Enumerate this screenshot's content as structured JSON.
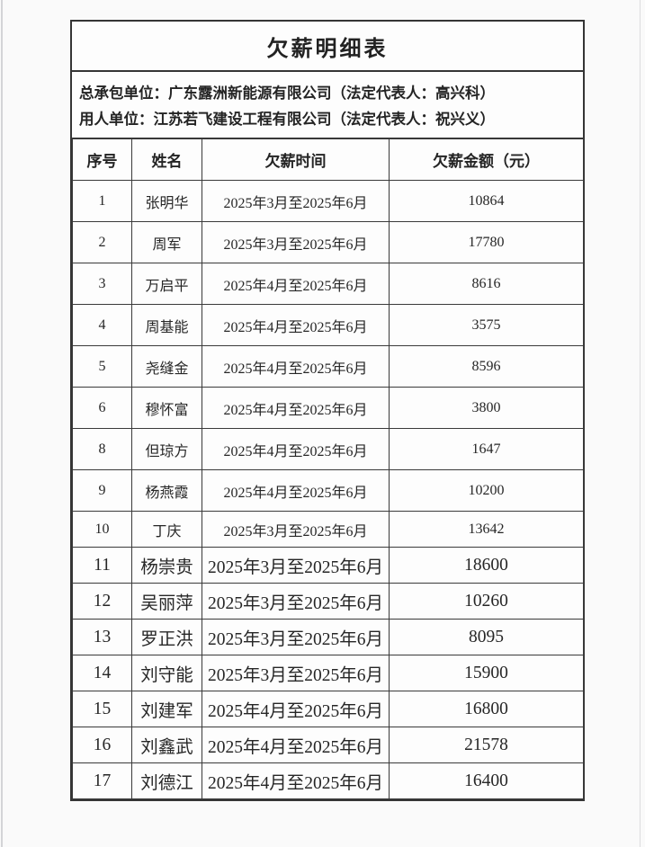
{
  "page": {
    "title": "欠薪明细表",
    "info_lines": [
      "总承包单位：广东露洲新能源有限公司（法定代表人：高兴科）",
      "用人单位：江苏若飞建设工程有限公司（法定代表人：祝兴义）"
    ]
  },
  "table": {
    "headers": [
      "序号",
      "姓名",
      "欠薪时间",
      "欠薪金额（元）"
    ],
    "rows": [
      [
        "1",
        "张明华",
        "2025年3月至2025年6月",
        "10864"
      ],
      [
        "2",
        "周军",
        "2025年3月至2025年6月",
        "17780"
      ],
      [
        "3",
        "万启平",
        "2025年4月至2025年6月",
        "8616"
      ],
      [
        "4",
        "周基能",
        "2025年4月至2025年6月",
        "3575"
      ],
      [
        "5",
        "尧缝金",
        "2025年4月至2025年6月",
        "8596"
      ],
      [
        "6",
        "穆怀富",
        "2025年4月至2025年6月",
        "3800"
      ],
      [
        "8",
        "但琼方",
        "2025年4月至2025年6月",
        "1647"
      ],
      [
        "9",
        "杨燕霞",
        "2025年4月至2025年6月",
        "10200"
      ],
      [
        "10",
        "丁庆",
        "2025年3月至2025年6月",
        "13642"
      ],
      [
        "11",
        "杨崇贵",
        "2025年3月至2025年6月",
        "18600"
      ],
      [
        "12",
        "吴丽萍",
        "2025年3月至2025年6月",
        "10260"
      ],
      [
        "13",
        "罗正洪",
        "2025年3月至2025年6月",
        "8095"
      ],
      [
        "14",
        "刘守能",
        "2025年3月至2025年6月",
        "15900"
      ],
      [
        "15",
        "刘建军",
        "2025年4月至2025年6月",
        "16800"
      ],
      [
        "16",
        "刘鑫武",
        "2025年4月至2025年6月",
        "21578"
      ],
      [
        "17",
        "刘德江",
        "2025年4月至2025年6月",
        "16400"
      ]
    ]
  },
  "colors": {
    "border": "#353535",
    "text": "#262626",
    "page_background": "#fdfdfd"
  }
}
